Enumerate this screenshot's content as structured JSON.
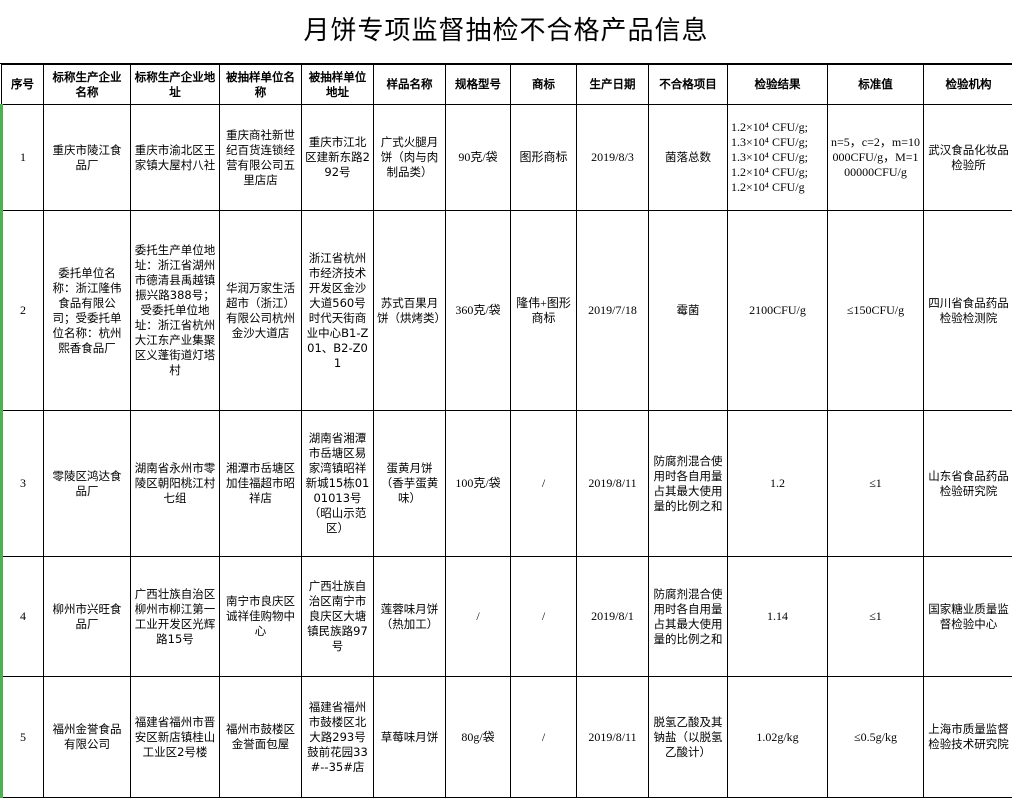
{
  "title": "月饼专项监督抽检不合格产品信息",
  "headers": [
    "序号",
    "标称生产企业名称",
    "标称生产企业地址",
    "被抽样单位名称",
    "被抽样单位地址",
    "样品名称",
    "规格型号",
    "商标",
    "生产日期",
    "不合格项目",
    "检验结果",
    "标准值",
    "检验机构"
  ],
  "rows": [
    {
      "no": "1",
      "maker": "重庆市陵江食品厂",
      "maker_addr": "重庆市渝北区王家镇大屋村八社",
      "sampled": "重庆商社新世纪百货连锁经营有限公司五里店店",
      "sampled_addr": "重庆市江北区建新东路292号",
      "product": "广式火腿月饼（肉与肉制品类）",
      "spec": "90克/袋",
      "brand": "图形商标",
      "date": "2019/8/3",
      "item": "菌落总数",
      "result": [
        "1.2×10⁴ CFU/g;",
        "1.3×10⁴ CFU/g;",
        "1.3×10⁴ CFU/g;",
        "1.2×10⁴ CFU/g;",
        "1.2×10⁴ CFU/g"
      ],
      "standard": "n=5，c=2，m=10000CFU/g，M=100000CFU/g",
      "lab": "武汉食品化妆品检验所"
    },
    {
      "no": "2",
      "maker": "委托单位名称：浙江隆伟食品有限公司；受委托单位名称：杭州熙香食品厂",
      "maker_addr": "委托生产单位地址：浙江省湖州市德清县禹越镇振兴路388号；受委托单位地址：浙江省杭州大江东产业集聚区义蓬街道灯塔村",
      "sampled": "华润万家生活超市（浙江）有限公司杭州金沙大道店",
      "sampled_addr": "浙江省杭州市经济技术开发区金沙大道560号时代天街商业中心B1-Z01、B2-Z01",
      "product": "苏式百果月饼（烘烤类）",
      "spec": "360克/袋",
      "brand": "隆伟+图形商标",
      "date": "2019/7/18",
      "item": "霉菌",
      "result": [
        "2100CFU/g"
      ],
      "standard": "≤150CFU/g",
      "lab": "四川省食品药品检验检测院"
    },
    {
      "no": "3",
      "maker": "零陵区鸿达食品厂",
      "maker_addr": "湖南省永州市零陵区朝阳桃江村七组",
      "sampled": "湘潭市岳塘区加佳福超市昭祥店",
      "sampled_addr": "湖南省湘潭市岳塘区易家湾镇昭祥新城15栋0101013号（昭山示范区）",
      "product": "蛋黄月饼（香芋蛋黄味）",
      "spec": "100克/袋",
      "brand": "/",
      "date": "2019/8/11",
      "item": "防腐剂混合使用时各自用量占其最大使用量的比例之和",
      "result": [
        "1.2"
      ],
      "standard": "≤1",
      "lab": "山东省食品药品检验研究院"
    },
    {
      "no": "4",
      "maker": "柳州市兴旺食品厂",
      "maker_addr": "广西壮族自治区柳州市柳江第一工业开发区光辉路15号",
      "sampled": "南宁市良庆区诚祥佳购物中心",
      "sampled_addr": "广西壮族自治区南宁市良庆区大塘镇民族路97号",
      "product": "莲蓉味月饼（热加工）",
      "spec": "/",
      "brand": "/",
      "date": "2019/8/1",
      "item": "防腐剂混合使用时各自用量占其最大使用量的比例之和",
      "result": [
        "1.14"
      ],
      "standard": "≤1",
      "lab": "国家糖业质量监督检验中心"
    },
    {
      "no": "5",
      "maker": "福州金誉食品有限公司",
      "maker_addr": "福建省福州市晋安区新店镇桂山工业区2号楼",
      "sampled": "福州市鼓楼区金誉面包屋",
      "sampled_addr": "福建省福州市鼓楼区北大路293号鼓前花园33#--35#店",
      "product": "草莓味月饼",
      "spec": "80g/袋",
      "brand": "/",
      "date": "2019/8/11",
      "item": "脱氢乙酸及其钠盐（以脱氢乙酸计）",
      "result": [
        "1.02g/kg"
      ],
      "standard": "≤0.5g/kg",
      "lab": "上海市质量监督检验技术研究院"
    }
  ]
}
